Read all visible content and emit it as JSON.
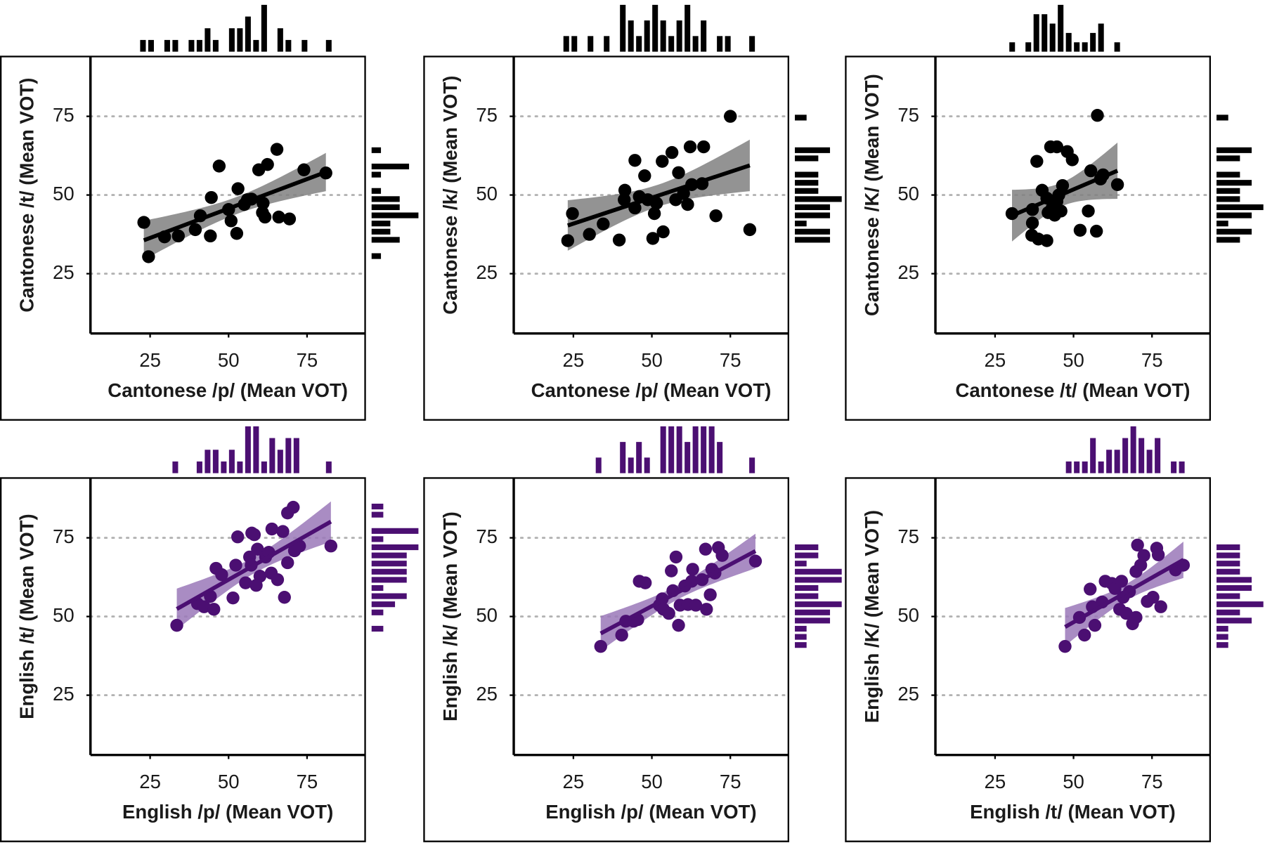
{
  "chart_data": [
    {
      "type": "scatter",
      "x_label": "Cantonese /p/ (Mean VOT)",
      "y_label": "Cantonese /t/ (Mean VOT)",
      "color": "#000000",
      "band_color": "#808080",
      "x": [
        23,
        24.5,
        29.6,
        34,
        39.4,
        41,
        44.2,
        44.5,
        47,
        50,
        50.8,
        52.6,
        53,
        55,
        56,
        59.6,
        60.8,
        61.6,
        62.4,
        65.4,
        66,
        69.4,
        74,
        81,
        61,
        57.3
      ],
      "values": [
        41.3,
        30.4,
        36.7,
        37,
        39,
        43.4,
        37,
        49.2,
        59.2,
        45.4,
        41.8,
        37.8,
        52,
        47,
        48.5,
        58,
        44.4,
        43,
        59.7,
        64.5,
        43,
        42.4,
        58,
        57,
        47.4,
        48.7
      ],
      "xlim": [
        6,
        93.5
      ],
      "ylim": [
        6,
        94
      ],
      "xticks": [
        25,
        50,
        75
      ],
      "yticks": [
        25,
        50,
        75
      ],
      "grid": true
    },
    {
      "type": "scatter",
      "x_label": "Cantonese /p/ (Mean VOT)",
      "y_label": "Cantonese /k/ (Mean VOT)",
      "color": "#000000",
      "band_color": "#808080",
      "x": [
        23.2,
        24.7,
        30.1,
        34.5,
        39.6,
        41.4,
        41.2,
        44.6,
        47.7,
        44.6,
        48.7,
        50.3,
        50.8,
        51.5,
        53.6,
        53.3,
        56.4,
        58.5,
        60.1,
        61.4,
        62.7,
        62.2,
        66.5,
        66,
        70.4,
        75,
        81.2,
        57.6,
        46
      ],
      "values": [
        35.5,
        44.1,
        37.5,
        40.8,
        35.7,
        51.5,
        48.5,
        61,
        56.1,
        45.9,
        48.5,
        36.2,
        44.1,
        47.4,
        38.3,
        60.7,
        63.5,
        57.1,
        50.5,
        47,
        53.3,
        65.3,
        65.3,
        53.6,
        43.4,
        75,
        39,
        48.5,
        49.5
      ],
      "xlim": [
        6,
        93.5
      ],
      "ylim": [
        6,
        94
      ],
      "xticks": [
        25,
        50,
        75
      ],
      "yticks": [
        25,
        50,
        75
      ],
      "grid": true
    },
    {
      "type": "scatter",
      "x_label": "Cantonese /t/ (Mean VOT)",
      "y_label": "Cantonese /K/ (Mean VOT)",
      "color": "#000000",
      "band_color": "#808080",
      "x": [
        30.4,
        36.9,
        38.3,
        36.9,
        36.7,
        38.8,
        41.5,
        40,
        42.7,
        44.7,
        41.9,
        43.2,
        44.7,
        44,
        46,
        45.3,
        46.5,
        48,
        49.6,
        52.1,
        54.7,
        55.5,
        57.6,
        57.3,
        58.6,
        59.4,
        64,
        41.5
      ],
      "values": [
        44.1,
        45.4,
        60.7,
        41.1,
        37.2,
        36,
        35.5,
        51.5,
        65.3,
        65.3,
        44.4,
        45.9,
        48,
        43.6,
        44.9,
        50,
        53,
        63.8,
        61.2,
        38.8,
        44.9,
        57.7,
        75.3,
        38.5,
        55.1,
        56.4,
        53.3,
        49
      ],
      "xlim": [
        6,
        93.5
      ],
      "ylim": [
        6,
        94
      ],
      "xticks": [
        25,
        50,
        75
      ],
      "yticks": [
        25,
        50,
        75
      ],
      "grid": true
    },
    {
      "type": "scatter",
      "x_label": "English /p/ (Mean VOT)",
      "y_label": "English /t/ (Mean VOT)",
      "color": "#4b0f72",
      "band_color": "#9a78b8",
      "x": [
        33.5,
        40.1,
        42.2,
        44.2,
        45.3,
        46,
        47.8,
        51.4,
        52.9,
        52.3,
        55.4,
        56.7,
        57.4,
        58.2,
        57.2,
        59.2,
        60,
        61.8,
        62.8,
        63.6,
        63.8,
        65.6,
        67.3,
        67.8,
        68.8,
        68.8,
        70.6,
        71,
        72.6,
        82.6,
        58.8
      ],
      "values": [
        47.2,
        54.1,
        53.1,
        56.4,
        52.3,
        65.3,
        63.3,
        55.9,
        75.3,
        66.3,
        60.7,
        68.9,
        76.5,
        76,
        66.3,
        71.4,
        62.8,
        68.9,
        70.4,
        63.8,
        77.8,
        61.7,
        77,
        56.1,
        67.1,
        82.9,
        84.7,
        70.9,
        72.4,
        72.4,
        59.9
      ],
      "xlim": [
        6,
        93.5
      ],
      "ylim": [
        6,
        94
      ],
      "xticks": [
        25,
        50,
        75
      ],
      "yticks": [
        25,
        50,
        75
      ],
      "grid": true
    },
    {
      "type": "scatter",
      "x_label": "English /p/ (Mean VOT)",
      "y_label": "English /k/ (Mean VOT)",
      "color": "#4b0f72",
      "band_color": "#9a78b8",
      "x": [
        33.7,
        40.4,
        41.7,
        44.2,
        45.5,
        46,
        47.9,
        52.4,
        53.3,
        53.7,
        55.4,
        56.2,
        56.7,
        57.7,
        58.5,
        59,
        60.5,
        61.5,
        62.7,
        64,
        66,
        67.1,
        67.4,
        68.6,
        69.1,
        70.1,
        71.2,
        72.4,
        83,
        63
      ],
      "values": [
        40.5,
        44.1,
        48.5,
        48.5,
        49,
        61.2,
        60.7,
        53.6,
        55.6,
        52.3,
        51,
        64.5,
        58.2,
        68.9,
        47.2,
        53.6,
        59.7,
        53.8,
        61.2,
        53.6,
        61.7,
        71.4,
        52.3,
        56.9,
        65,
        63.8,
        71.9,
        69.4,
        67.6,
        65
      ],
      "xlim": [
        6,
        93.5
      ],
      "ylim": [
        6,
        94
      ],
      "xticks": [
        25,
        50,
        75
      ],
      "yticks": [
        25,
        50,
        75
      ],
      "grid": true
    },
    {
      "type": "scatter",
      "x_label": "English /t/ (Mean VOT)",
      "y_label": "English /K/ (Mean VOT)",
      "color": "#4b0f72",
      "band_color": "#9a78b8",
      "x": [
        47.3,
        51.9,
        53.5,
        56,
        56.8,
        59.1,
        60.1,
        62.2,
        63.2,
        64.7,
        65.3,
        65.8,
        66.8,
        67.8,
        68.8,
        69.9,
        70.4,
        71.4,
        72.4,
        73.5,
        75.3,
        76.5,
        77,
        77.8,
        82.5,
        85,
        55.3,
        69.9
      ],
      "values": [
        40.5,
        49.7,
        44.1,
        53.1,
        47.2,
        54.6,
        61.2,
        60.5,
        58.9,
        52.3,
        61.2,
        56.1,
        51,
        57.9,
        47.7,
        64.3,
        72.7,
        66.3,
        69.4,
        54.8,
        56.1,
        71.7,
        69.6,
        53.1,
        64.8,
        66.3,
        58.7,
        49.7
      ],
      "xlim": [
        6,
        93.5
      ],
      "ylim": [
        6,
        94
      ],
      "xticks": [
        25,
        50,
        75
      ],
      "yticks": [
        25,
        50,
        75
      ],
      "grid": true
    }
  ]
}
